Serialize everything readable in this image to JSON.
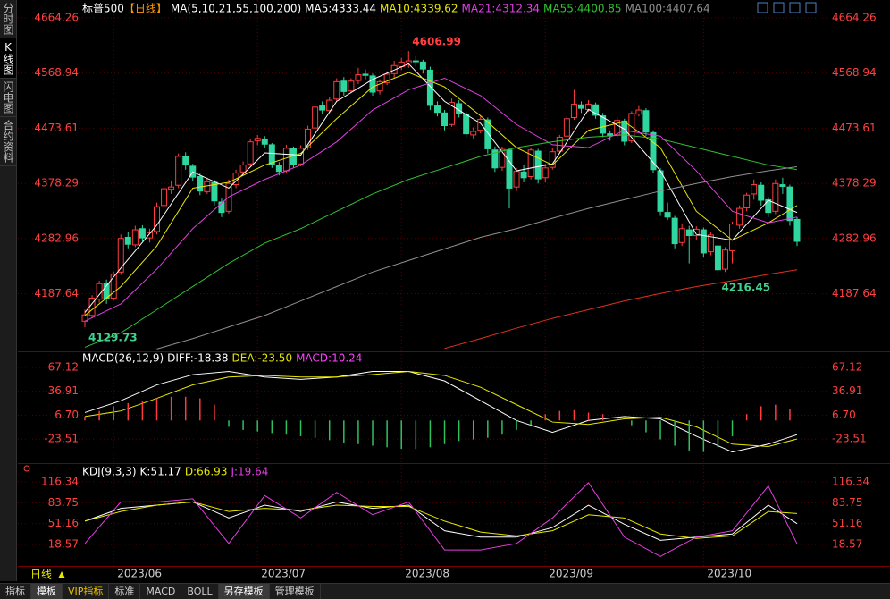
{
  "ui": {
    "side_tabs": [
      "分时图",
      "K线图",
      "闪电图",
      "合约资料"
    ],
    "period": "日线",
    "bottom_tabs": [
      "指标",
      "模板",
      "VIP指标",
      "标准",
      "MACD",
      "BOLL",
      "另存模板",
      "管理模板"
    ]
  },
  "chart_data": [
    {
      "type": "candlestick",
      "title": "标普500",
      "title_tag": "【日线】",
      "subtitle": "MA(5,10,21,55,100,200)",
      "up_color": "#ff3c3c",
      "down_color": "#2fd6a0",
      "ylim": [
        4089.5,
        4664.26
      ],
      "yticks": [
        4187.64,
        4282.96,
        4378.29,
        4473.61,
        4568.94,
        4664.26
      ],
      "xticks": [
        {
          "value": 4,
          "label": "2023/06"
        },
        {
          "value": 24,
          "label": "2023/07"
        },
        {
          "value": 44,
          "label": "2023/08"
        },
        {
          "value": 64,
          "label": "2023/09"
        },
        {
          "value": 86,
          "label": "2023/10"
        }
      ],
      "ohlc": [
        [
          4140,
          4160,
          4129.73,
          4151
        ],
        [
          4150,
          4185,
          4145,
          4180
        ],
        [
          4178,
          4210,
          4172,
          4205
        ],
        [
          4206,
          4212,
          4170,
          4179
        ],
        [
          4180,
          4226,
          4176,
          4221
        ],
        [
          4225,
          4290,
          4220,
          4283
        ],
        [
          4285,
          4295,
          4266,
          4273
        ],
        [
          4272,
          4305,
          4268,
          4298
        ],
        [
          4300,
          4306,
          4278,
          4284
        ],
        [
          4284,
          4300,
          4276,
          4293
        ],
        [
          4295,
          4345,
          4290,
          4338
        ],
        [
          4340,
          4375,
          4335,
          4369
        ],
        [
          4368,
          4382,
          4360,
          4372
        ],
        [
          4375,
          4430,
          4370,
          4425
        ],
        [
          4424,
          4432,
          4402,
          4410
        ],
        [
          4408,
          4412,
          4382,
          4389
        ],
        [
          4390,
          4395,
          4358,
          4365
        ],
        [
          4364,
          4388,
          4360,
          4381
        ],
        [
          4380,
          4384,
          4340,
          4348
        ],
        [
          4346,
          4352,
          4320,
          4328
        ],
        [
          4330,
          4385,
          4326,
          4378
        ],
        [
          4376,
          4402,
          4370,
          4396
        ],
        [
          4398,
          4416,
          4392,
          4410
        ],
        [
          4412,
          4455,
          4408,
          4450
        ],
        [
          4452,
          4462,
          4444,
          4456
        ],
        [
          4455,
          4460,
          4440,
          4446
        ],
        [
          4445,
          4448,
          4405,
          4411
        ],
        [
          4410,
          4415,
          4392,
          4399
        ],
        [
          4400,
          4445,
          4396,
          4439
        ],
        [
          4438,
          4442,
          4405,
          4411
        ],
        [
          4412,
          4444,
          4408,
          4439
        ],
        [
          4440,
          4478,
          4436,
          4472
        ],
        [
          4474,
          4515,
          4470,
          4510
        ],
        [
          4512,
          4520,
          4498,
          4505
        ],
        [
          4504,
          4528,
          4500,
          4522
        ],
        [
          4524,
          4560,
          4520,
          4554
        ],
        [
          4555,
          4562,
          4530,
          4537
        ],
        [
          4538,
          4560,
          4534,
          4555
        ],
        [
          4556,
          4578,
          4550,
          4566
        ],
        [
          4567,
          4575,
          4558,
          4565
        ],
        [
          4564,
          4568,
          4530,
          4536
        ],
        [
          4538,
          4558,
          4532,
          4554
        ],
        [
          4552,
          4572,
          4548,
          4567
        ],
        [
          4568,
          4590,
          4560,
          4582
        ],
        [
          4580,
          4595,
          4574,
          4588
        ],
        [
          4586,
          4606.99,
          4578,
          4590
        ],
        [
          4590,
          4598,
          4580,
          4589
        ],
        [
          4588,
          4592,
          4568,
          4576
        ],
        [
          4574,
          4580,
          4505,
          4513
        ],
        [
          4512,
          4520,
          4494,
          4501
        ],
        [
          4500,
          4505,
          4470,
          4478
        ],
        [
          4480,
          4525,
          4476,
          4518
        ],
        [
          4516,
          4522,
          4492,
          4499
        ],
        [
          4498,
          4502,
          4458,
          4464
        ],
        [
          4462,
          4475,
          4455,
          4468
        ],
        [
          4470,
          4494,
          4465,
          4489
        ],
        [
          4488,
          4492,
          4430,
          4438
        ],
        [
          4436,
          4442,
          4398,
          4405
        ],
        [
          4406,
          4442,
          4400,
          4437
        ],
        [
          4436,
          4440,
          4335,
          4370
        ],
        [
          4372,
          4405,
          4365,
          4399
        ],
        [
          4398,
          4410,
          4380,
          4388
        ],
        [
          4390,
          4440,
          4385,
          4436
        ],
        [
          4434,
          4438,
          4378,
          4386
        ],
        [
          4388,
          4412,
          4380,
          4405
        ],
        [
          4406,
          4440,
          4402,
          4433
        ],
        [
          4434,
          4462,
          4430,
          4458
        ],
        [
          4460,
          4495,
          4455,
          4490
        ],
        [
          4492,
          4540,
          4488,
          4515
        ],
        [
          4514,
          4520,
          4500,
          4508
        ],
        [
          4506,
          4522,
          4502,
          4515
        ],
        [
          4514,
          4518,
          4490,
          4496
        ],
        [
          4495,
          4500,
          4458,
          4465
        ],
        [
          4464,
          4470,
          4452,
          4461
        ],
        [
          4462,
          4492,
          4458,
          4487
        ],
        [
          4486,
          4490,
          4444,
          4451
        ],
        [
          4452,
          4503,
          4448,
          4499
        ],
        [
          4498,
          4512,
          4494,
          4505
        ],
        [
          4504,
          4508,
          4460,
          4467
        ],
        [
          4466,
          4470,
          4396,
          4402
        ],
        [
          4400,
          4405,
          4322,
          4330
        ],
        [
          4328,
          4345,
          4315,
          4320
        ],
        [
          4318,
          4322,
          4266,
          4274
        ],
        [
          4276,
          4308,
          4270,
          4300
        ],
        [
          4298,
          4305,
          4240,
          4288
        ],
        [
          4288,
          4304,
          4280,
          4299
        ],
        [
          4298,
          4302,
          4250,
          4258
        ],
        [
          4260,
          4295,
          4254,
          4289
        ],
        [
          4270,
          4272,
          4216.45,
          4229
        ],
        [
          4230,
          4268,
          4225,
          4263
        ],
        [
          4262,
          4312,
          4240,
          4308
        ],
        [
          4306,
          4340,
          4300,
          4335
        ],
        [
          4336,
          4362,
          4330,
          4358
        ],
        [
          4360,
          4385,
          4350,
          4376
        ],
        [
          4375,
          4380,
          4340,
          4349
        ],
        [
          4350,
          4355,
          4320,
          4328
        ],
        [
          4330,
          4385,
          4325,
          4378
        ],
        [
          4376,
          4388,
          4360,
          4373
        ],
        [
          4372,
          4376,
          4305,
          4314
        ],
        [
          4316,
          4320,
          4270,
          4278
        ]
      ],
      "x": [
        0,
        5,
        10,
        15,
        20,
        25,
        30,
        35,
        40,
        45,
        50,
        55,
        60,
        65,
        70,
        75,
        80,
        85,
        90,
        95,
        99
      ],
      "series": [
        {
          "name": "MA5:4333.44",
          "color": "#ffffff",
          "values": [
            4155,
            4232,
            4306,
            4398,
            4370,
            4431,
            4427,
            4520,
            4558,
            4585,
            4520,
            4482,
            4400,
            4412,
            4506,
            4472,
            4400,
            4290,
            4280,
            4349,
            4328
          ]
        },
        {
          "name": "MA10:4339.62",
          "color": "#e8e800",
          "values": [
            4150,
            4200,
            4270,
            4370,
            4380,
            4410,
            4430,
            4490,
            4545,
            4570,
            4545,
            4495,
            4440,
            4410,
            4470,
            4485,
            4440,
            4330,
            4280,
            4310,
            4340
          ]
        },
        {
          "name": "MA21:4312.34",
          "color": "#e040e0",
          "values": [
            4140,
            4170,
            4230,
            4300,
            4355,
            4385,
            4410,
            4450,
            4505,
            4540,
            4560,
            4530,
            4480,
            4445,
            4440,
            4470,
            4460,
            4400,
            4330,
            4310,
            4320
          ]
        },
        {
          "name": "MA55:4400.85",
          "color": "#30c030",
          "values": [
            4095,
            4120,
            4160,
            4200,
            4240,
            4275,
            4300,
            4330,
            4360,
            4385,
            4405,
            4425,
            4440,
            4450,
            4458,
            4462,
            4455,
            4440,
            4425,
            4410,
            4402
          ]
        },
        {
          "name": "MA100:4407.64",
          "color": "#909090",
          "values": [
            null,
            null,
            4092,
            4110,
            4130,
            4150,
            4175,
            4200,
            4225,
            4245,
            4265,
            4285,
            4300,
            4318,
            4335,
            4350,
            4365,
            4378,
            4390,
            4400,
            4407
          ]
        },
        {
          "color": "#e03020",
          "values": [
            null,
            null,
            null,
            null,
            null,
            null,
            null,
            null,
            null,
            null,
            4093,
            4110,
            4128,
            4145,
            4160,
            4175,
            4188,
            4200,
            4210,
            4221,
            4229
          ]
        }
      ],
      "annotations": [
        {
          "x": 45,
          "value": 4606.99,
          "color": "#ff4040"
        },
        {
          "x": 0,
          "value": 4129.73,
          "color": "#40d090"
        },
        {
          "x": 88,
          "value": 4216.45,
          "color": "#40d090"
        }
      ]
    },
    {
      "type": "macd",
      "title": "MACD(26,12,9)",
      "ylim": [
        -54.0,
        84.1
      ],
      "yticks": [
        -23.51,
        {
          "value": 6.7,
          "label": "6.70"
        },
        36.91,
        67.12
      ],
      "x": [
        0,
        5,
        10,
        15,
        20,
        25,
        30,
        35,
        40,
        45,
        50,
        55,
        60,
        65,
        70,
        75,
        80,
        85,
        90,
        95,
        99
      ],
      "series": [
        {
          "name": "DIFF:-18.38",
          "color": "#ffffff",
          "values": [
            10,
            25,
            45,
            58,
            62,
            55,
            52,
            55,
            62,
            62,
            50,
            25,
            0,
            -15,
            0,
            5,
            2,
            -20,
            -40,
            -30,
            -18
          ]
        },
        {
          "name": "DEA:-23.50",
          "color": "#e8e800",
          "values": [
            5,
            12,
            28,
            45,
            55,
            57,
            55,
            55,
            58,
            62,
            57,
            42,
            20,
            -2,
            -5,
            2,
            4,
            -8,
            -30,
            -33,
            -23.5
          ]
        },
        {
          "name": "MACD:10.24",
          "color": "#ff40ff",
          "type": "bar",
          "up_color": "#ff3c3c",
          "down_color": "#30c060",
          "x": [
            0,
            2,
            4,
            6,
            8,
            10,
            12,
            14,
            16,
            18,
            20,
            22,
            24,
            26,
            28,
            30,
            32,
            34,
            36,
            38,
            40,
            42,
            44,
            46,
            48,
            50,
            52,
            54,
            56,
            58,
            60,
            62,
            64,
            66,
            68,
            70,
            72,
            74,
            76,
            78,
            80,
            82,
            84,
            86,
            88,
            90,
            92,
            94,
            96,
            98
          ],
          "values": [
            5,
            12,
            18,
            22,
            25,
            28,
            30,
            30,
            28,
            20,
            -8,
            -12,
            -14,
            -16,
            -18,
            -20,
            -22,
            -25,
            -28,
            -30,
            -32,
            -34,
            -36,
            -36,
            -34,
            -30,
            -26,
            -24,
            -22,
            -18,
            -12,
            -6,
            8,
            12,
            13,
            10,
            8,
            4,
            -6,
            -15,
            -24,
            -32,
            -38,
            -40,
            -34,
            -20,
            8,
            18,
            20,
            15
          ]
        }
      ]
    },
    {
      "type": "kdj",
      "title": "KDJ(9,3,3)",
      "ylim": [
        -13.6,
        142.9
      ],
      "yticks": [
        18.57,
        51.16,
        83.75,
        116.34
      ],
      "x": [
        0,
        5,
        10,
        15,
        20,
        25,
        30,
        35,
        40,
        45,
        50,
        55,
        60,
        65,
        70,
        75,
        80,
        85,
        90,
        95,
        99
      ],
      "series": [
        {
          "name": "K:51.17",
          "color": "#ffffff",
          "values": [
            55,
            75,
            80,
            85,
            60,
            80,
            70,
            85,
            75,
            80,
            40,
            30,
            30,
            45,
            80,
            50,
            25,
            30,
            35,
            80,
            51.17
          ]
        },
        {
          "name": "D:66.93",
          "color": "#e8e800",
          "values": [
            55,
            70,
            80,
            85,
            70,
            75,
            72,
            80,
            78,
            78,
            55,
            38,
            32,
            40,
            65,
            60,
            35,
            28,
            32,
            70,
            66.93
          ]
        },
        {
          "name": "J:19.64",
          "color": "#e040e0",
          "values": [
            20,
            85,
            85,
            90,
            20,
            95,
            60,
            100,
            65,
            85,
            10,
            10,
            20,
            60,
            115,
            30,
            0,
            30,
            40,
            110,
            19.64
          ]
        }
      ]
    }
  ]
}
